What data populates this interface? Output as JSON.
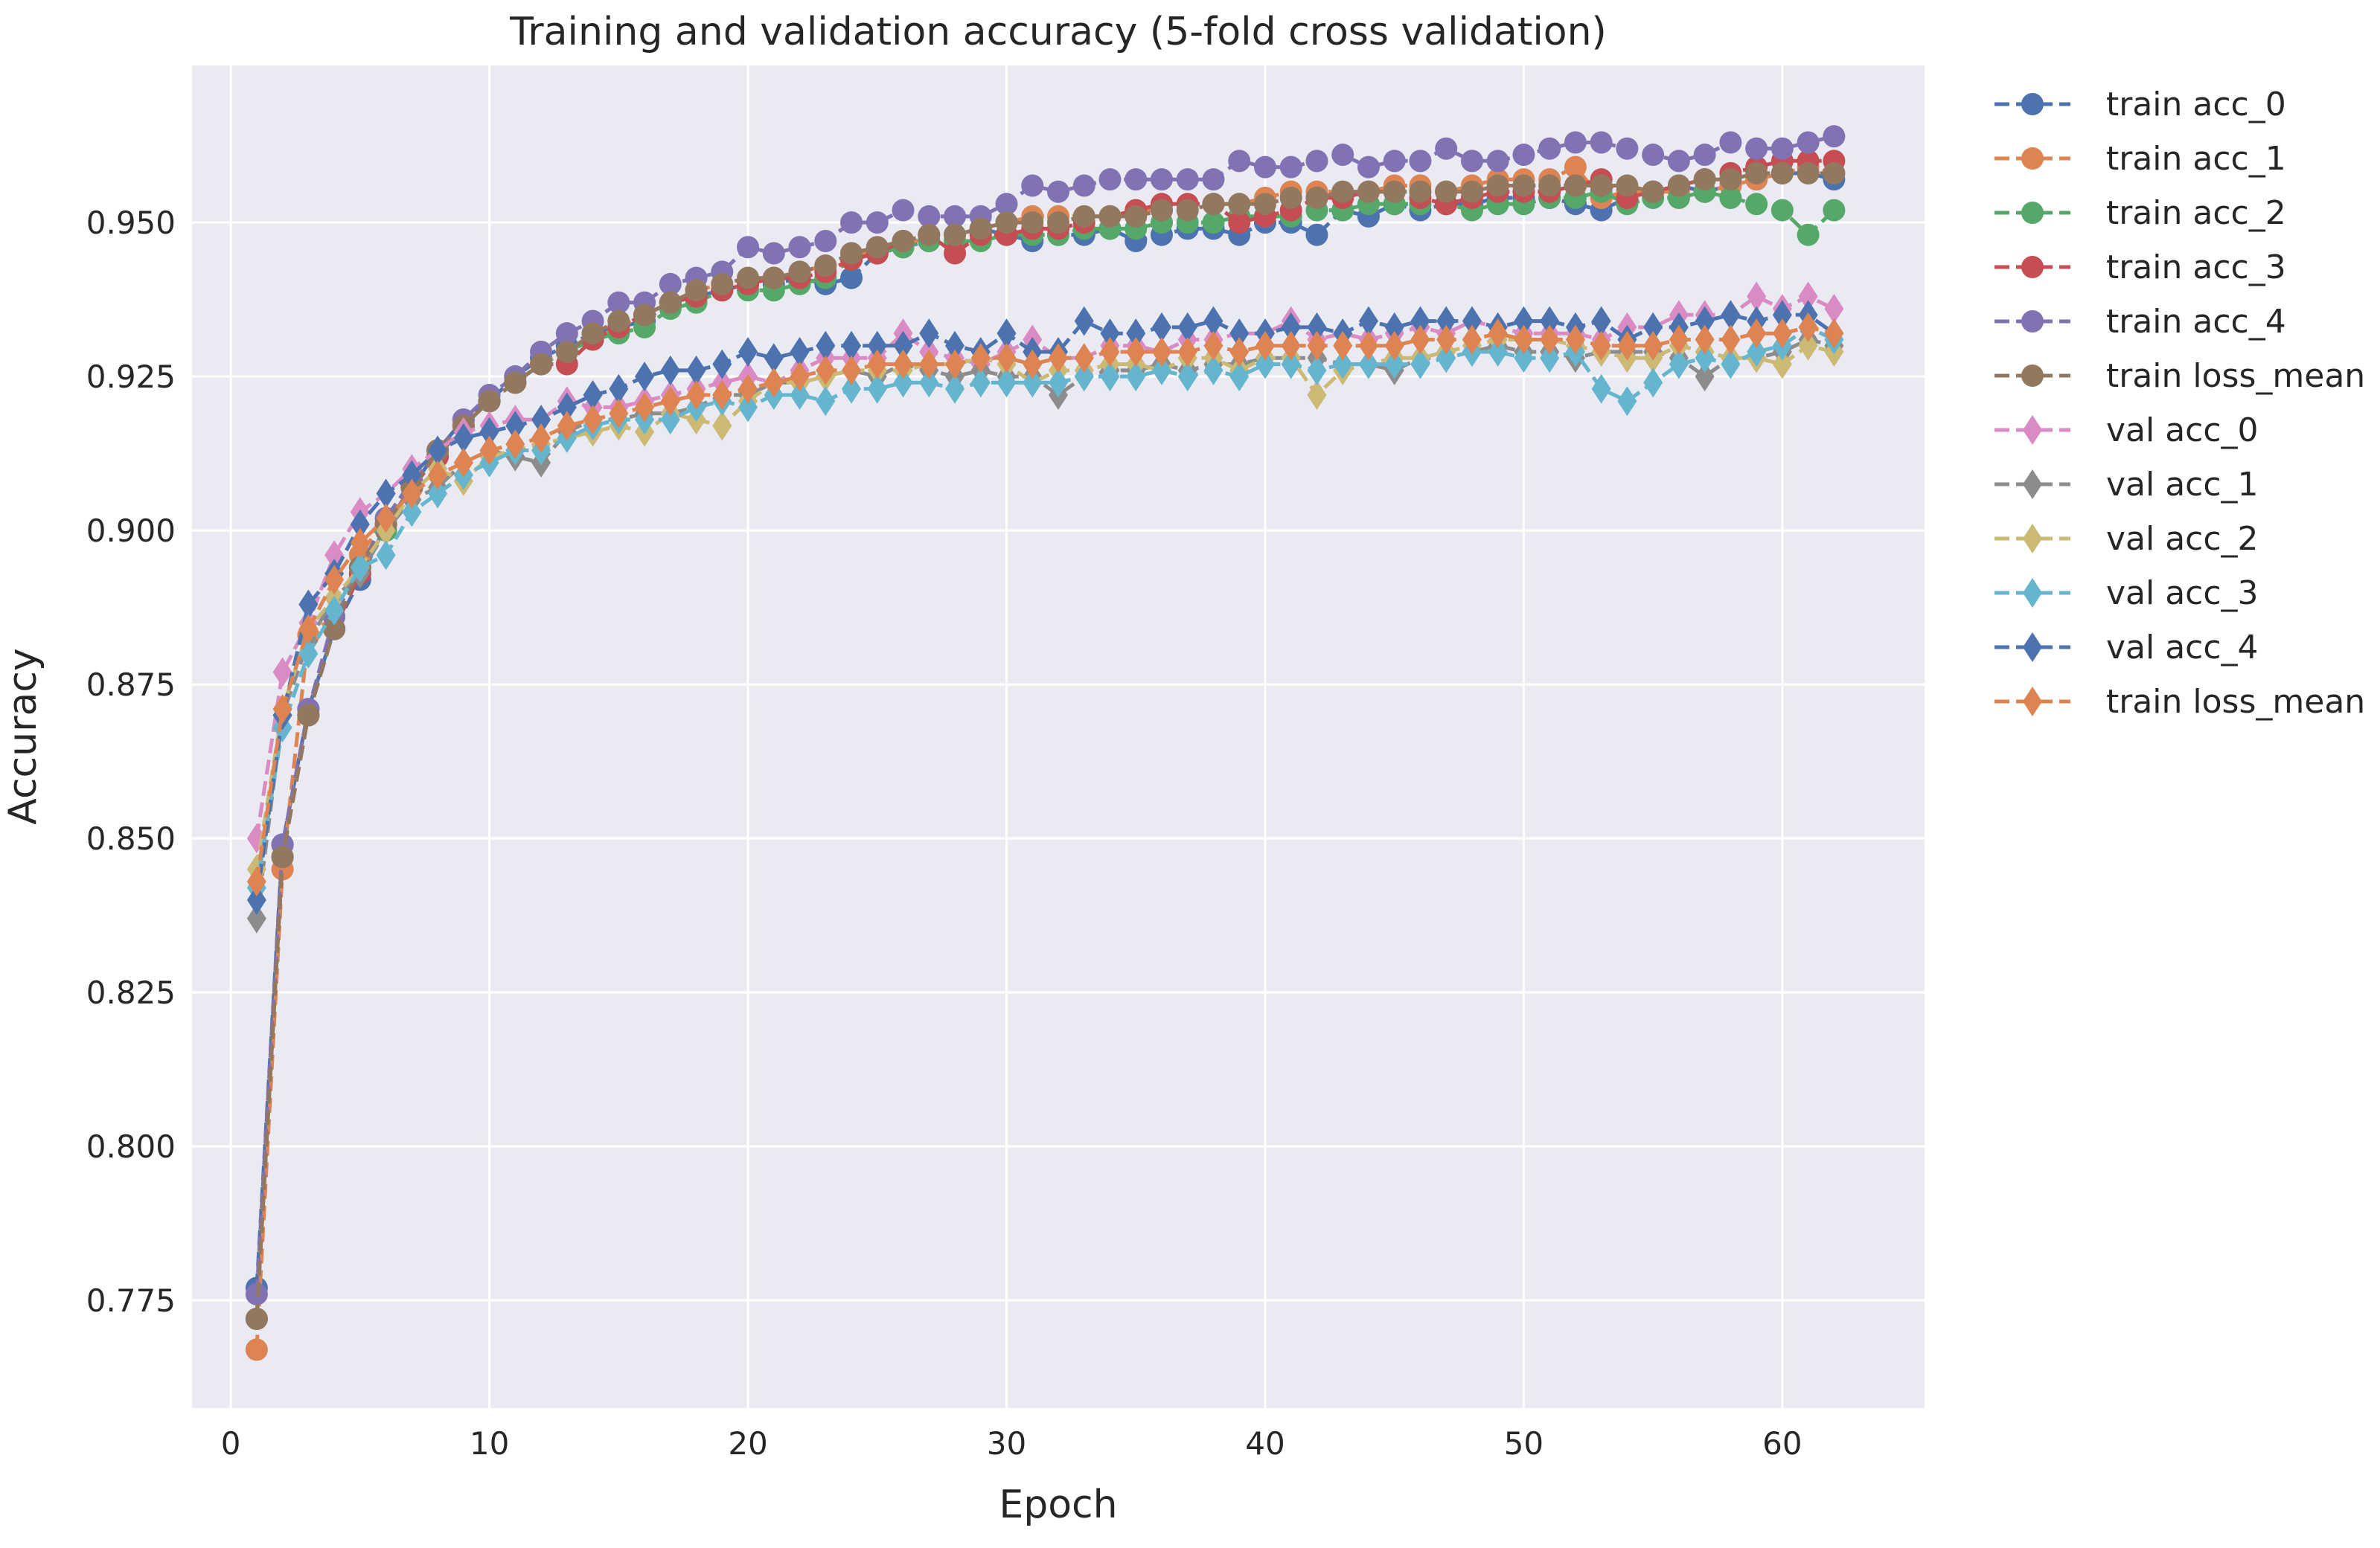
{
  "chart_data": {
    "type": "line",
    "title": "Training and validation accuracy (5-fold cross validation)",
    "xlabel": "Epoch",
    "ylabel": "Accuracy",
    "xlim": [
      -1.5,
      65.5
    ],
    "ylim": [
      0.7575,
      0.9755
    ],
    "xticks": [
      0,
      10,
      20,
      30,
      40,
      50,
      60
    ],
    "yticks": [
      0.775,
      0.8,
      0.825,
      0.85,
      0.875,
      0.9,
      0.925,
      0.95
    ],
    "ytick_labels": [
      "0.775",
      "0.800",
      "0.825",
      "0.850",
      "0.875",
      "0.900",
      "0.925",
      "0.950"
    ],
    "grid": true,
    "background": "#EAEAF2",
    "legend_position": "outside-right",
    "x": [
      1,
      2,
      3,
      4,
      5,
      6,
      7,
      8,
      9,
      10,
      11,
      12,
      13,
      14,
      15,
      16,
      17,
      18,
      19,
      20,
      21,
      22,
      23,
      24,
      25,
      26,
      27,
      28,
      29,
      30,
      31,
      32,
      33,
      34,
      35,
      36,
      37,
      38,
      39,
      40,
      41,
      42,
      43,
      44,
      45,
      46,
      47,
      48,
      49,
      50,
      51,
      52,
      53,
      54,
      55,
      56,
      57,
      58,
      59,
      60,
      61,
      62
    ],
    "series": [
      {
        "name": "train acc_0",
        "color": "#4C72B0",
        "marker": "circle",
        "values": [
          0.777,
          0.849,
          0.871,
          0.884,
          0.892,
          0.901,
          0.907,
          0.913,
          0.918,
          0.921,
          0.925,
          0.928,
          0.93,
          0.932,
          0.933,
          0.934,
          0.937,
          0.938,
          0.939,
          0.94,
          0.94,
          0.941,
          0.94,
          0.941,
          0.945,
          0.946,
          0.947,
          0.948,
          0.949,
          0.948,
          0.947,
          0.948,
          0.948,
          0.949,
          0.947,
          0.948,
          0.949,
          0.949,
          0.948,
          0.95,
          0.95,
          0.948,
          0.952,
          0.951,
          0.953,
          0.952,
          0.953,
          0.953,
          0.954,
          0.954,
          0.954,
          0.953,
          0.952,
          0.954,
          0.955,
          0.956,
          0.955,
          0.956,
          0.957,
          0.958,
          0.958,
          0.957
        ]
      },
      {
        "name": "train acc_1",
        "color": "#DD8452",
        "marker": "circle",
        "values": [
          0.767,
          0.845,
          0.883,
          0.886,
          0.896,
          0.902,
          0.908,
          0.913,
          0.917,
          0.921,
          0.924,
          0.927,
          0.929,
          0.931,
          0.933,
          0.935,
          0.937,
          0.939,
          0.94,
          0.941,
          0.941,
          0.942,
          0.943,
          0.945,
          0.945,
          0.946,
          0.948,
          0.948,
          0.949,
          0.95,
          0.951,
          0.951,
          0.951,
          0.951,
          0.952,
          0.952,
          0.952,
          0.953,
          0.953,
          0.954,
          0.955,
          0.955,
          0.955,
          0.955,
          0.956,
          0.956,
          0.955,
          0.956,
          0.957,
          0.957,
          0.957,
          0.959,
          0.954,
          0.955,
          0.955,
          0.955,
          0.955,
          0.956,
          0.957,
          0.958,
          0.959,
          0.958
        ]
      },
      {
        "name": "train acc_2",
        "color": "#55A868",
        "marker": "circle",
        "values": [
          0.772,
          0.847,
          0.87,
          0.884,
          0.893,
          0.9,
          0.907,
          0.912,
          0.917,
          0.921,
          0.924,
          0.927,
          0.929,
          0.931,
          0.932,
          0.933,
          0.936,
          0.937,
          0.939,
          0.939,
          0.939,
          0.94,
          0.941,
          0.944,
          0.945,
          0.946,
          0.947,
          0.947,
          0.947,
          0.948,
          0.948,
          0.948,
          0.949,
          0.949,
          0.949,
          0.95,
          0.95,
          0.95,
          0.951,
          0.951,
          0.951,
          0.952,
          0.952,
          0.953,
          0.953,
          0.953,
          0.953,
          0.952,
          0.953,
          0.953,
          0.954,
          0.954,
          0.955,
          0.953,
          0.954,
          0.954,
          0.955,
          0.954,
          0.953,
          0.952,
          0.948,
          0.952
        ]
      },
      {
        "name": "train acc_3",
        "color": "#C44E52",
        "marker": "circle",
        "values": [
          0.772,
          0.847,
          0.87,
          0.884,
          0.893,
          0.901,
          0.907,
          0.912,
          0.917,
          0.921,
          0.924,
          0.927,
          0.927,
          0.931,
          0.933,
          0.935,
          0.937,
          0.938,
          0.939,
          0.94,
          0.941,
          0.941,
          0.942,
          0.944,
          0.945,
          0.947,
          0.948,
          0.945,
          0.948,
          0.948,
          0.949,
          0.949,
          0.95,
          0.951,
          0.952,
          0.953,
          0.953,
          0.953,
          0.95,
          0.951,
          0.952,
          0.954,
          0.954,
          0.955,
          0.955,
          0.954,
          0.953,
          0.954,
          0.955,
          0.955,
          0.955,
          0.956,
          0.957,
          0.954,
          0.955,
          0.956,
          0.957,
          0.958,
          0.959,
          0.96,
          0.96,
          0.96
        ]
      },
      {
        "name": "train acc_4",
        "color": "#8172B3",
        "marker": "circle",
        "values": [
          0.776,
          0.849,
          0.871,
          0.886,
          0.894,
          0.902,
          0.908,
          0.913,
          0.918,
          0.922,
          0.925,
          0.929,
          0.932,
          0.934,
          0.937,
          0.937,
          0.94,
          0.941,
          0.942,
          0.946,
          0.945,
          0.946,
          0.947,
          0.95,
          0.95,
          0.952,
          0.951,
          0.951,
          0.951,
          0.953,
          0.956,
          0.955,
          0.956,
          0.957,
          0.957,
          0.957,
          0.957,
          0.957,
          0.96,
          0.959,
          0.959,
          0.96,
          0.961,
          0.959,
          0.96,
          0.96,
          0.962,
          0.96,
          0.96,
          0.961,
          0.962,
          0.963,
          0.963,
          0.962,
          0.961,
          0.96,
          0.961,
          0.963,
          0.962,
          0.962,
          0.963,
          0.964
        ]
      },
      {
        "name": "train loss_mean",
        "color": "#937860",
        "marker": "circle",
        "values": [
          0.772,
          0.847,
          0.87,
          0.884,
          0.894,
          0.901,
          0.907,
          0.913,
          0.917,
          0.921,
          0.924,
          0.927,
          0.929,
          0.932,
          0.934,
          0.935,
          0.937,
          0.939,
          0.94,
          0.941,
          0.941,
          0.942,
          0.943,
          0.945,
          0.946,
          0.947,
          0.948,
          0.948,
          0.949,
          0.95,
          0.95,
          0.95,
          0.951,
          0.951,
          0.951,
          0.952,
          0.952,
          0.953,
          0.953,
          0.953,
          0.954,
          0.954,
          0.955,
          0.955,
          0.955,
          0.955,
          0.955,
          0.955,
          0.956,
          0.956,
          0.956,
          0.956,
          0.956,
          0.956,
          0.955,
          0.956,
          0.957,
          0.957,
          0.958,
          0.958,
          0.958,
          0.958
        ]
      },
      {
        "name": "val acc_0",
        "color": "#DA8BC3",
        "marker": "diamond",
        "values": [
          0.85,
          0.877,
          0.885,
          0.896,
          0.903,
          0.906,
          0.91,
          0.913,
          0.916,
          0.917,
          0.918,
          0.918,
          0.921,
          0.92,
          0.92,
          0.921,
          0.922,
          0.923,
          0.924,
          0.925,
          0.924,
          0.926,
          0.928,
          0.928,
          0.928,
          0.932,
          0.929,
          0.928,
          0.927,
          0.929,
          0.931,
          0.928,
          0.928,
          0.93,
          0.93,
          0.929,
          0.931,
          0.931,
          0.932,
          0.932,
          0.934,
          0.931,
          0.932,
          0.931,
          0.932,
          0.933,
          0.932,
          0.934,
          0.933,
          0.932,
          0.932,
          0.932,
          0.931,
          0.933,
          0.933,
          0.935,
          0.935,
          0.935,
          0.938,
          0.936,
          0.938,
          0.936
        ]
      },
      {
        "name": "val acc_1",
        "color": "#8C8C8C",
        "marker": "diamond",
        "values": [
          0.837,
          0.87,
          0.882,
          0.889,
          0.893,
          0.9,
          0.905,
          0.907,
          0.911,
          0.913,
          0.912,
          0.911,
          0.916,
          0.918,
          0.918,
          0.919,
          0.919,
          0.92,
          0.922,
          0.922,
          0.924,
          0.924,
          0.925,
          0.926,
          0.925,
          0.927,
          0.926,
          0.925,
          0.926,
          0.925,
          0.925,
          0.922,
          0.925,
          0.926,
          0.926,
          0.927,
          0.926,
          0.927,
          0.927,
          0.928,
          0.928,
          0.928,
          0.927,
          0.927,
          0.926,
          0.928,
          0.928,
          0.929,
          0.93,
          0.929,
          0.929,
          0.928,
          0.929,
          0.929,
          0.929,
          0.928,
          0.925,
          0.928,
          0.928,
          0.929,
          0.931,
          0.93
        ]
      },
      {
        "name": "val acc_2",
        "color": "#CCB974",
        "marker": "diamond",
        "values": [
          0.845,
          0.871,
          0.884,
          0.889,
          0.894,
          0.9,
          0.906,
          0.91,
          0.908,
          0.912,
          0.913,
          0.914,
          0.915,
          0.916,
          0.917,
          0.916,
          0.919,
          0.918,
          0.917,
          0.921,
          0.924,
          0.924,
          0.925,
          0.926,
          0.926,
          0.926,
          0.927,
          0.927,
          0.928,
          0.927,
          0.924,
          0.926,
          0.926,
          0.927,
          0.927,
          0.926,
          0.928,
          0.928,
          0.926,
          0.928,
          0.928,
          0.922,
          0.926,
          0.927,
          0.928,
          0.928,
          0.929,
          0.93,
          0.931,
          0.931,
          0.931,
          0.93,
          0.929,
          0.928,
          0.928,
          0.93,
          0.929,
          0.928,
          0.928,
          0.927,
          0.93,
          0.929
        ]
      },
      {
        "name": "val acc_3",
        "color": "#64B5CD",
        "marker": "diamond",
        "values": [
          0.842,
          0.868,
          0.88,
          0.887,
          0.894,
          0.896,
          0.903,
          0.906,
          0.909,
          0.911,
          0.913,
          0.913,
          0.915,
          0.917,
          0.918,
          0.918,
          0.918,
          0.92,
          0.921,
          0.92,
          0.922,
          0.922,
          0.921,
          0.923,
          0.923,
          0.924,
          0.924,
          0.923,
          0.924,
          0.924,
          0.924,
          0.924,
          0.925,
          0.925,
          0.925,
          0.926,
          0.925,
          0.926,
          0.925,
          0.927,
          0.927,
          0.926,
          0.927,
          0.927,
          0.927,
          0.927,
          0.928,
          0.929,
          0.929,
          0.928,
          0.928,
          0.929,
          0.923,
          0.921,
          0.924,
          0.927,
          0.928,
          0.927,
          0.929,
          0.93,
          0.933,
          0.931
        ]
      },
      {
        "name": "val acc_4",
        "color": "#4C72B0",
        "marker": "diamond",
        "values": [
          0.84,
          0.87,
          0.888,
          0.893,
          0.901,
          0.906,
          0.909,
          0.913,
          0.915,
          0.916,
          0.917,
          0.918,
          0.92,
          0.922,
          0.923,
          0.925,
          0.926,
          0.926,
          0.927,
          0.929,
          0.928,
          0.929,
          0.93,
          0.93,
          0.93,
          0.93,
          0.932,
          0.93,
          0.929,
          0.932,
          0.929,
          0.929,
          0.934,
          0.932,
          0.932,
          0.933,
          0.933,
          0.934,
          0.932,
          0.932,
          0.933,
          0.933,
          0.932,
          0.934,
          0.933,
          0.934,
          0.934,
          0.934,
          0.933,
          0.934,
          0.934,
          0.933,
          0.934,
          0.931,
          0.933,
          0.933,
          0.934,
          0.935,
          0.934,
          0.935,
          0.935,
          0.932
        ]
      },
      {
        "name": "train loss_mean",
        "color": "#DD8452",
        "marker": "diamond",
        "values": [
          0.843,
          0.871,
          0.884,
          0.892,
          0.898,
          0.902,
          0.906,
          0.909,
          0.911,
          0.913,
          0.914,
          0.915,
          0.917,
          0.918,
          0.919,
          0.92,
          0.921,
          0.922,
          0.922,
          0.923,
          0.924,
          0.925,
          0.926,
          0.926,
          0.927,
          0.927,
          0.927,
          0.927,
          0.928,
          0.928,
          0.927,
          0.928,
          0.928,
          0.929,
          0.929,
          0.929,
          0.929,
          0.93,
          0.929,
          0.93,
          0.93,
          0.93,
          0.93,
          0.93,
          0.93,
          0.931,
          0.931,
          0.931,
          0.932,
          0.931,
          0.931,
          0.931,
          0.93,
          0.93,
          0.93,
          0.931,
          0.931,
          0.931,
          0.932,
          0.932,
          0.933,
          0.932
        ]
      }
    ]
  }
}
